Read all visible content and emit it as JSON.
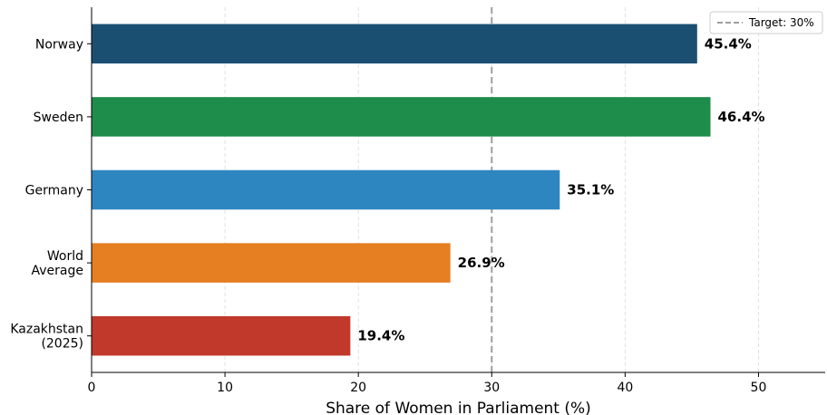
{
  "chart_data": {
    "type": "bar",
    "orientation": "horizontal",
    "title": "",
    "xlabel": "Share of Women in Parliament (%)",
    "ylabel": "",
    "xlim": [
      0,
      55
    ],
    "xticks": [
      0,
      10,
      20,
      30,
      40,
      50
    ],
    "grid": "vertical-dashed",
    "categories": [
      "Norway",
      "Sweden",
      "Germany",
      "World\nAverage",
      "Kazakhstan\n(2025)"
    ],
    "values": [
      45.4,
      46.4,
      35.1,
      26.9,
      19.4
    ],
    "value_labels": [
      "45.4%",
      "46.4%",
      "35.1%",
      "26.9%",
      "19.4%"
    ],
    "colors": [
      "#1b4f72",
      "#1e8c4b",
      "#2e86c1",
      "#e67e22",
      "#c0392b"
    ],
    "reference_line": {
      "value": 30,
      "label": "Target: 30%",
      "color": "#9e9e9e"
    },
    "legend_position": "top-right"
  }
}
